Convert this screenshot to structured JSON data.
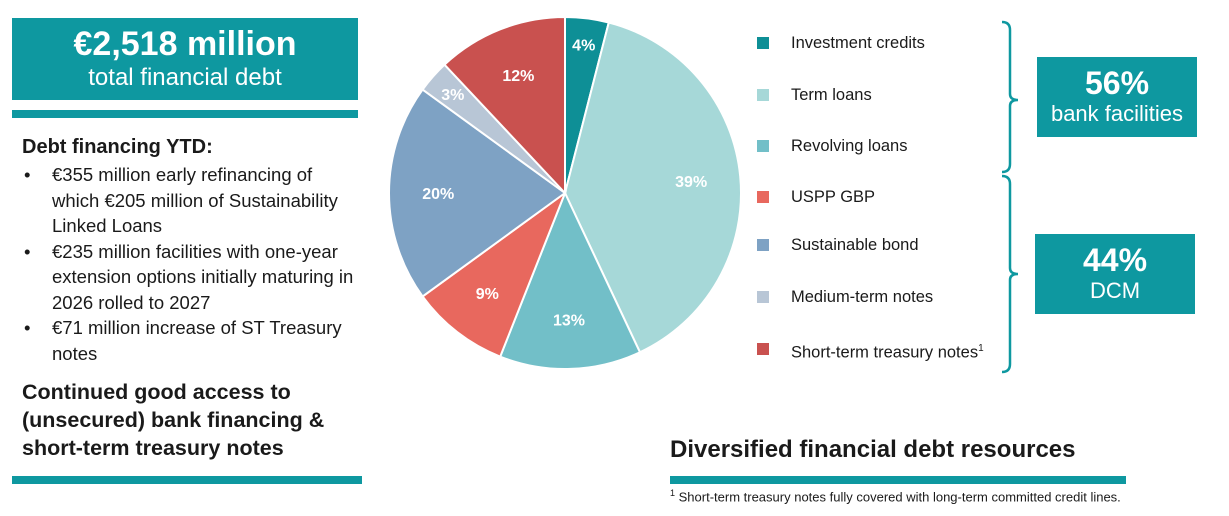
{
  "banner": {
    "amount": "€2,518 million",
    "caption": "total financial debt"
  },
  "left": {
    "heading": "Debt financing YTD:",
    "bullets": [
      "€355 million early refinancing of which €205 million of Sustainability Linked Loans",
      "€235 million facilities with one-year extension options initially maturing in 2026 rolled to 2027",
      "€71 million increase of ST Treasury notes"
    ],
    "closing": "Continued good access to (unsecured) bank financing & short-term treasury notes"
  },
  "chart_data": {
    "type": "pie",
    "title": "",
    "slices": [
      {
        "label": "Investment credits",
        "value": 4,
        "display": "4%",
        "color": "#0e8f96"
      },
      {
        "label": "Term loans",
        "value": 39,
        "display": "39%",
        "color": "#a6d8d8"
      },
      {
        "label": "Revolving loans",
        "value": 13,
        "display": "13%",
        "color": "#72bfc8"
      },
      {
        "label": "USPP GBP",
        "value": 9,
        "display": "9%",
        "color": "#e8685e"
      },
      {
        "label": "Sustainable bond",
        "value": 20,
        "display": "20%",
        "color": "#7ea2c4"
      },
      {
        "label": "Medium-term notes",
        "value": 3,
        "display": "3%",
        "color": "#b8c6d6"
      },
      {
        "label": "Short-term treasury notes",
        "value": 12,
        "display": "12%",
        "color": "#c9514f",
        "footnote_ref": "1"
      }
    ],
    "groups": [
      {
        "pct": "56%",
        "label": "bank facilities"
      },
      {
        "pct": "44%",
        "label": "DCM"
      }
    ]
  },
  "subtitle": "Diversified financial debt resources",
  "footnote": {
    "marker": "1",
    "text": " Short-term treasury notes fully covered with long-term committed credit lines."
  },
  "colors": {
    "accent": "#0e98a0"
  }
}
